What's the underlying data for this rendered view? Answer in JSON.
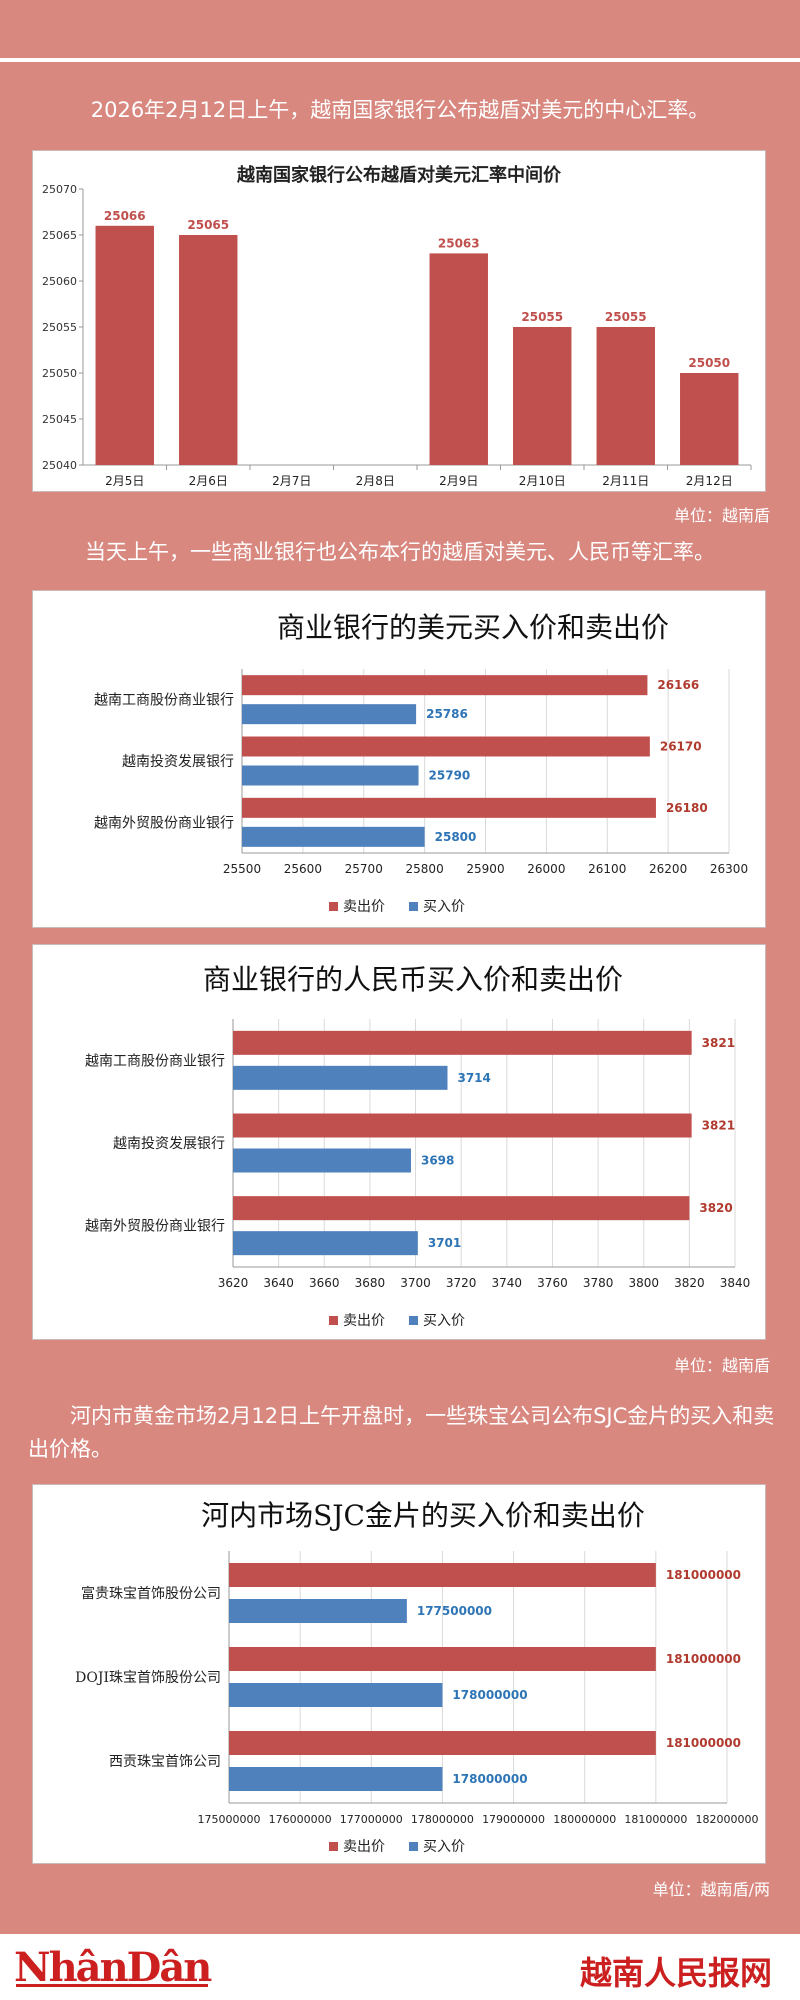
{
  "header": {
    "intro": "2026年2月12日上午，越南国家银行公布越盾对美元的中心汇率。",
    "unit1": "单位：越南盾",
    "para2": "当天上午，一些商业银行也公布本行的越盾对美元、人民币等汇率。",
    "unit2": "单位：越南盾",
    "para3": "河内市黄金市场2月12日上午开盘时，一些珠宝公司公布SJC金片的买入和卖出价格。",
    "unit3": "单位：越南盾/两"
  },
  "footer": {
    "logo": "NhânDân",
    "site": "越南人民报网"
  },
  "colors": {
    "red": "#c0504d",
    "blue": "#4f81bd",
    "background": "#d98880"
  },
  "chart_data": [
    {
      "type": "bar",
      "title": "越南国家银行公布越盾对美元汇率中间价",
      "categories": [
        "2月5日",
        "2月6日",
        "2月7日",
        "2月8日",
        "2月9日",
        "2月10日",
        "2月11日",
        "2月12日"
      ],
      "values": [
        25066,
        25065,
        null,
        null,
        25063,
        25055,
        25055,
        25050
      ],
      "ylim": [
        25040,
        25070
      ],
      "yticks": [
        "25040",
        "25045",
        "25050",
        "25055",
        "25060",
        "25065",
        "25070"
      ],
      "grid": false
    },
    {
      "type": "bar",
      "orientation": "horizontal",
      "title": "商业银行的美元买入价和卖出价",
      "categories": [
        "越南工商股份商业银行",
        "越南投资发展银行",
        "越南外贸股份商业银行"
      ],
      "series": [
        {
          "name": "卖出价",
          "values": [
            26166,
            26170,
            26180
          ]
        },
        {
          "name": "买入价",
          "values": [
            25786,
            25790,
            25800
          ]
        }
      ],
      "xlim": [
        25500,
        26300
      ],
      "xticks": [
        "25500",
        "25600",
        "25700",
        "25800",
        "25900",
        "26000",
        "26100",
        "26200",
        "26300"
      ],
      "grid": true,
      "legend": "bottom"
    },
    {
      "type": "bar",
      "orientation": "horizontal",
      "title": "商业银行的人民币买入价和卖出价",
      "categories": [
        "越南工商股份商业银行",
        "越南投资发展银行",
        "越南外贸股份商业银行"
      ],
      "series": [
        {
          "name": "卖出价",
          "values": [
            3821,
            3821,
            3820
          ]
        },
        {
          "name": "买入价",
          "values": [
            3714,
            3698,
            3701
          ]
        }
      ],
      "xlim": [
        3620,
        3840
      ],
      "xticks": [
        "3620",
        "3640",
        "3660",
        "3680",
        "3700",
        "3720",
        "3740",
        "3760",
        "3780",
        "3800",
        "3820",
        "3840"
      ],
      "grid": true,
      "legend": "bottom"
    },
    {
      "type": "bar",
      "orientation": "horizontal",
      "title": "河内市场SJC金片的买入价和卖出价",
      "categories": [
        "富贵珠宝首饰股份公司",
        "DOJI珠宝首饰股份公司",
        "西贡珠宝首饰公司"
      ],
      "series": [
        {
          "name": "卖出价",
          "values": [
            181000000,
            181000000,
            181000000
          ]
        },
        {
          "name": "买入价",
          "values": [
            177500000,
            178000000,
            178000000
          ]
        }
      ],
      "xlim": [
        175000000,
        182000000
      ],
      "xticks": [
        "175000000",
        "176000000",
        "177000000",
        "178000000",
        "179000000",
        "180000000",
        "181000000",
        "182000000"
      ],
      "grid": true,
      "legend": "bottom"
    }
  ]
}
